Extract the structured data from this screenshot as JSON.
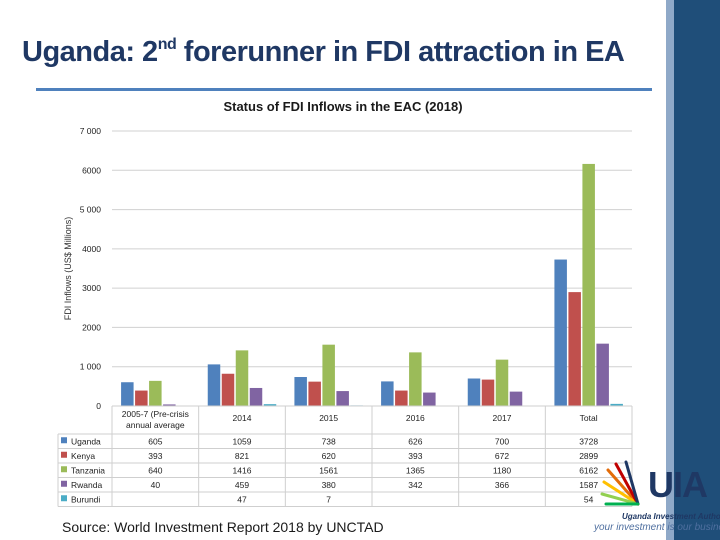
{
  "title": {
    "main": "Uganda: 2",
    "sup": "nd",
    "rest": " forerunner in FDI attraction in EA"
  },
  "source": "Source: World Investment Report 2018 by UNCTAD",
  "logo": {
    "mark": "UIA",
    "line1": "Uganda Investment Authority",
    "line2": "your investment is our business"
  },
  "chart_data": {
    "type": "bar",
    "title": "Status of FDI Inflows in the EAC (2018)",
    "ylabel": "FDI Inflows (US$ Millions)",
    "xlabel": "",
    "ylim": [
      0,
      7000
    ],
    "yticks": [
      "0",
      "1 000",
      "2000",
      "3000",
      "4000",
      "5 000",
      "6000",
      "7 000"
    ],
    "categories": [
      "2005-7 (Pre-crisis annual average",
      "2014",
      "2015",
      "2016",
      "2017",
      "Total"
    ],
    "series": [
      {
        "name": "Uganda",
        "color": "#4f81bd",
        "values": [
          605,
          1059,
          738,
          626,
          700,
          3728
        ],
        "labels": [
          "605",
          "1059",
          "738",
          "626",
          "700",
          "3728"
        ]
      },
      {
        "name": "Kenya",
        "color": "#c0504d",
        "values": [
          393,
          821,
          620,
          393,
          672,
          2899
        ],
        "labels": [
          "393",
          "821",
          "620",
          "393",
          "672",
          "2899"
        ]
      },
      {
        "name": "Tanzania",
        "color": "#9bbb59",
        "values": [
          640,
          1416,
          1561,
          1365,
          1180,
          6162
        ],
        "labels": [
          "640",
          "1416",
          "1561",
          "1365",
          "1180",
          "6162"
        ]
      },
      {
        "name": "Rwanda",
        "color": "#8064a2",
        "values": [
          40,
          459,
          380,
          342,
          366,
          1587
        ],
        "labels": [
          "40",
          "459",
          "380",
          "342",
          "366",
          "1587"
        ]
      },
      {
        "name": "Burundi",
        "color": "#4bacc6",
        "values": [
          null,
          47,
          7,
          null,
          null,
          54
        ],
        "labels": [
          "",
          "47",
          "7",
          "",
          "",
          "54"
        ]
      }
    ]
  }
}
